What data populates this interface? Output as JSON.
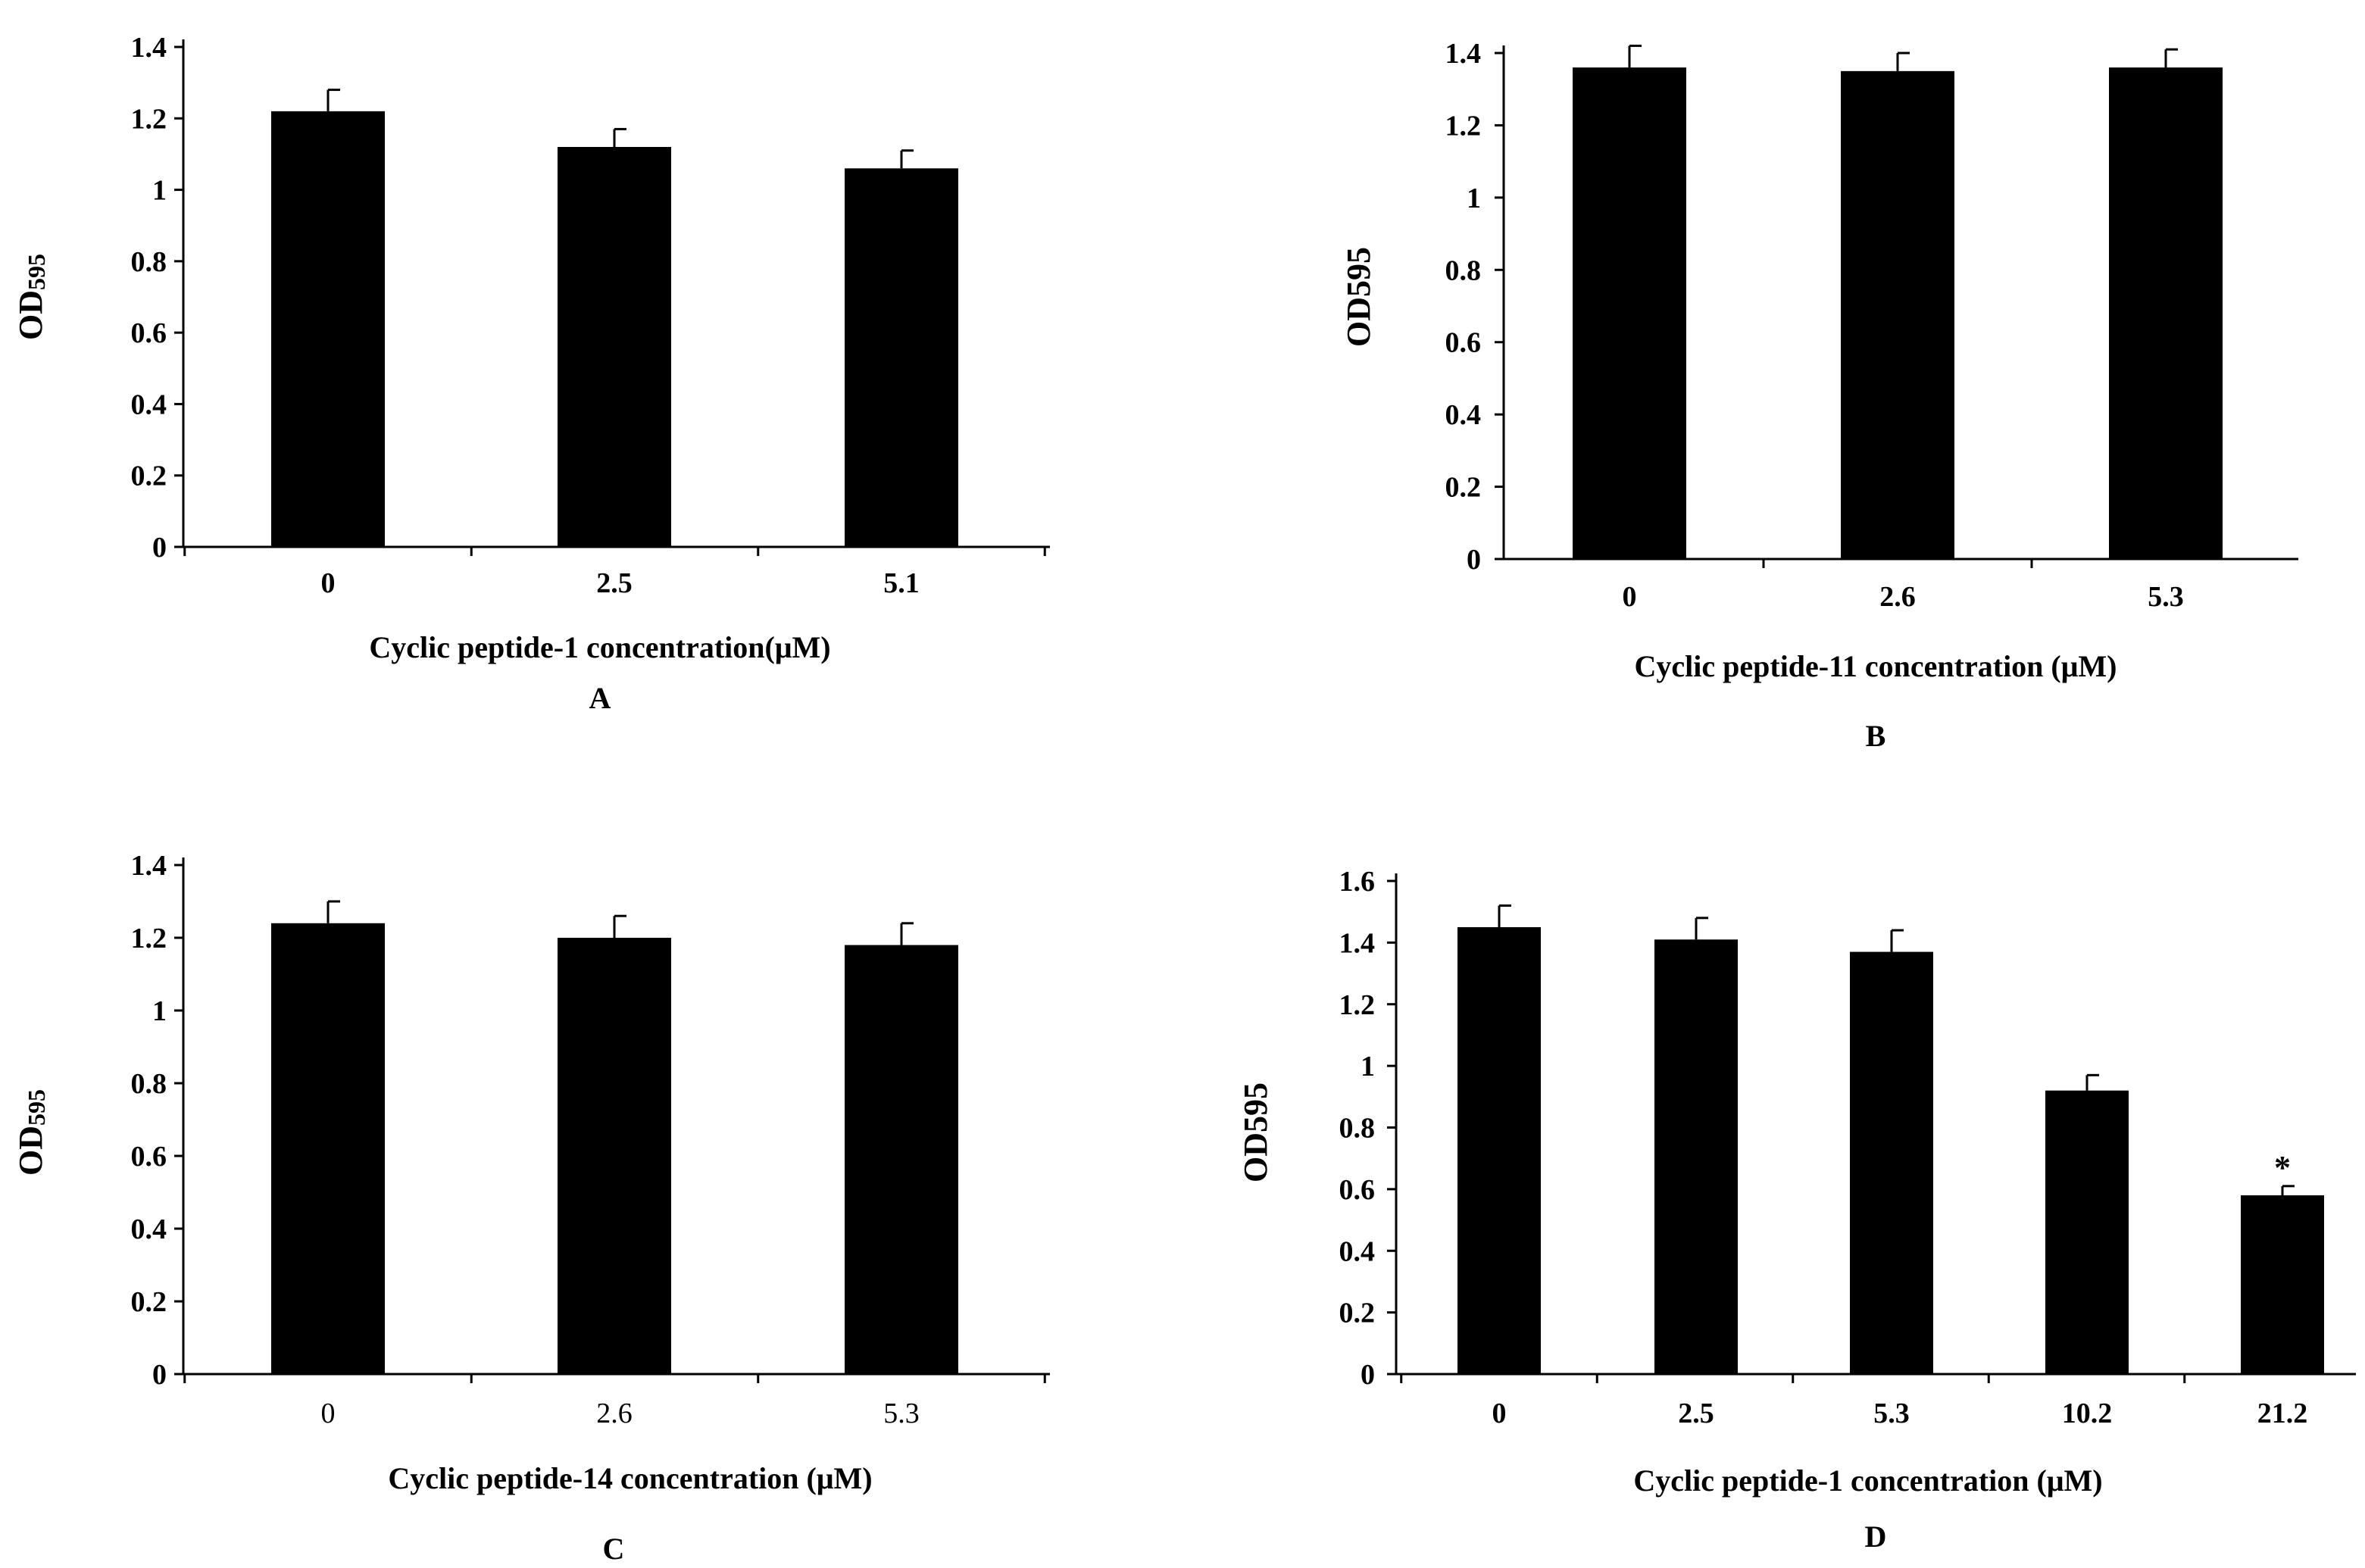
{
  "chart_data": [
    {
      "panel": "A",
      "type": "bar",
      "categories": [
        "0",
        "2.5",
        "5.1"
      ],
      "values": [
        1.22,
        1.12,
        1.06
      ],
      "errors": [
        0.06,
        0.05,
        0.05
      ],
      "ylim": [
        0,
        1.4
      ],
      "yticks": [
        "0",
        "0.2",
        "0.4",
        "0.6",
        "0.8",
        "1",
        "1.2",
        "1.4"
      ],
      "ylabel": "OD",
      "ylabel_sub": "595",
      "xlabel": "Cyclic peptide-1 concentration(μM)",
      "annotations": [
        "",
        "",
        ""
      ]
    },
    {
      "panel": "B",
      "type": "bar",
      "categories": [
        "0",
        "2.6",
        "5.3"
      ],
      "values": [
        1.36,
        1.35,
        1.36
      ],
      "errors": [
        0.06,
        0.05,
        0.05
      ],
      "ylim": [
        0,
        1.4
      ],
      "yticks": [
        "0",
        "0.2",
        "0.4",
        "0.6",
        "0.8",
        "1",
        "1.2",
        "1.4"
      ],
      "ylabel": "OD595",
      "ylabel_sub": "",
      "xlabel": "Cyclic peptide-11 concentration (μM)",
      "annotations": [
        "",
        "",
        ""
      ]
    },
    {
      "panel": "C",
      "type": "bar",
      "categories": [
        "0",
        "2.6",
        "5.3"
      ],
      "values": [
        1.24,
        1.2,
        1.18
      ],
      "errors": [
        0.06,
        0.06,
        0.06
      ],
      "ylim": [
        0,
        1.4
      ],
      "yticks": [
        "0",
        "0.2",
        "0.4",
        "0.6",
        "0.8",
        "1",
        "1.2",
        "1.4"
      ],
      "ylabel": "OD",
      "ylabel_sub": "595",
      "xlabel": "Cyclic peptide-14 concentration (μM)",
      "annotations": [
        "",
        "",
        ""
      ]
    },
    {
      "panel": "D",
      "type": "bar",
      "categories": [
        "0",
        "2.5",
        "5.3",
        "10.2",
        "21.2"
      ],
      "values": [
        1.45,
        1.41,
        1.37,
        0.92,
        0.58
      ],
      "errors": [
        0.07,
        0.07,
        0.07,
        0.05,
        0.03
      ],
      "ylim": [
        0,
        1.6
      ],
      "yticks": [
        "0",
        "0.2",
        "0.4",
        "0.6",
        "0.8",
        "1",
        "1.2",
        "1.4",
        "1.6"
      ],
      "ylabel": "OD595",
      "ylabel_sub": "",
      "xlabel": "Cyclic peptide-1  concentration (μM)",
      "annotations": [
        "",
        "",
        "",
        "",
        "*"
      ]
    }
  ],
  "colors": {
    "bar": "#000000",
    "axis": "#000000",
    "background": "#ffffff"
  }
}
